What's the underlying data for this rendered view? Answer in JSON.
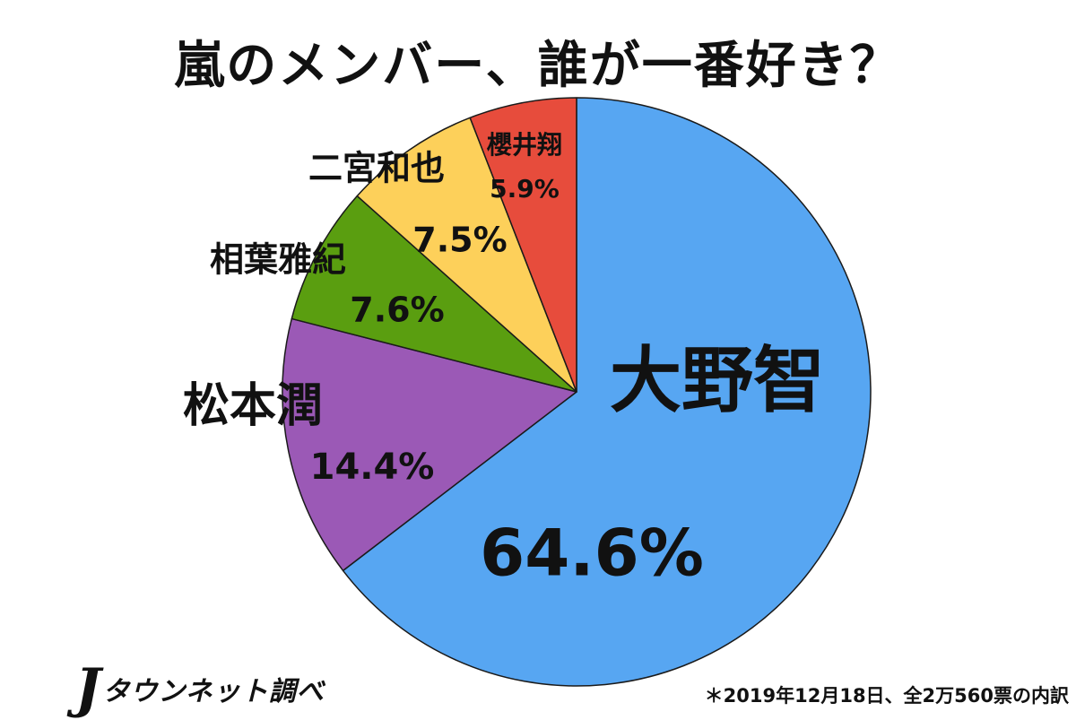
{
  "chart_data": {
    "type": "pie",
    "title": "嵐のメンバー、誰が一番好き？",
    "slices": [
      {
        "label": "大野智",
        "value": 64.6,
        "value_label": "64.6%",
        "color": "#57a6f2"
      },
      {
        "label": "松本潤",
        "value": 14.4,
        "value_label": "14.4%",
        "color": "#9b59b6"
      },
      {
        "label": "相葉雅紀",
        "value": 7.6,
        "value_label": "7.6%",
        "color": "#5a9e10"
      },
      {
        "label": "二宮和也",
        "value": 7.5,
        "value_label": "7.5%",
        "color": "#fdd05a"
      },
      {
        "label": "櫻井翔",
        "value": 5.9,
        "value_label": "5.9%",
        "color": "#e74c3c"
      }
    ],
    "start": "12 o'clock",
    "direction": "clockwise"
  },
  "footer": {
    "brand_mark": "J",
    "brand_text": "タウンネット調べ",
    "note": "＊2019年12月18日、全2万560票の内訳"
  }
}
